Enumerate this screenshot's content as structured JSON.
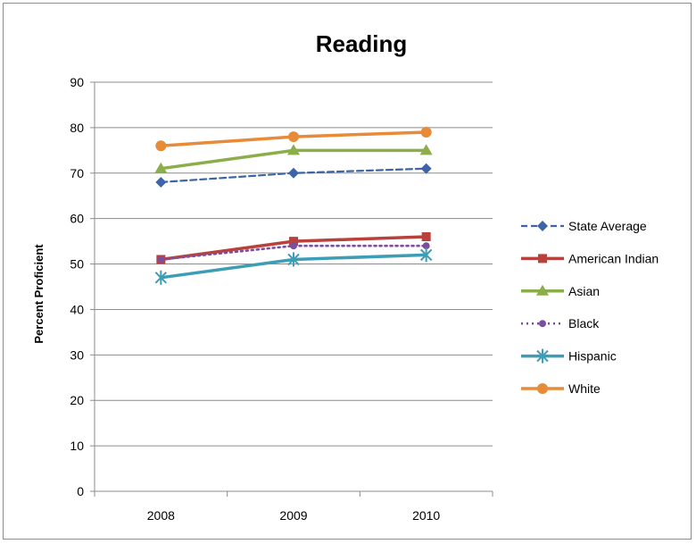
{
  "chart_data": {
    "type": "line",
    "title": "Reading",
    "xlabel": "",
    "ylabel": "Percent Proficient",
    "categories": [
      "2008",
      "2009",
      "2010"
    ],
    "ylim": [
      0,
      90
    ],
    "yticks": [
      0,
      10,
      20,
      30,
      40,
      50,
      60,
      70,
      80,
      90
    ],
    "grid": "horizontal",
    "legend_position": "right",
    "series": [
      {
        "name": "State Average",
        "values": [
          68,
          70,
          71
        ],
        "color": "#3c64a6",
        "marker": "diamond",
        "dash": "dashed"
      },
      {
        "name": "American Indian",
        "values": [
          51,
          55,
          56
        ],
        "color": "#b8413b",
        "marker": "square",
        "dash": "solid"
      },
      {
        "name": "Asian",
        "values": [
          71,
          75,
          75
        ],
        "color": "#8cae4a",
        "marker": "triangle",
        "dash": "solid"
      },
      {
        "name": "Black",
        "values": [
          51,
          54,
          54
        ],
        "color": "#7b4f9e",
        "marker": "circle-small",
        "dash": "dotted"
      },
      {
        "name": "Hispanic",
        "values": [
          47,
          51,
          52
        ],
        "color": "#3d9db6",
        "marker": "star",
        "dash": "solid"
      },
      {
        "name": "White",
        "values": [
          76,
          78,
          79
        ],
        "color": "#e88b38",
        "marker": "circle",
        "dash": "solid"
      }
    ]
  }
}
